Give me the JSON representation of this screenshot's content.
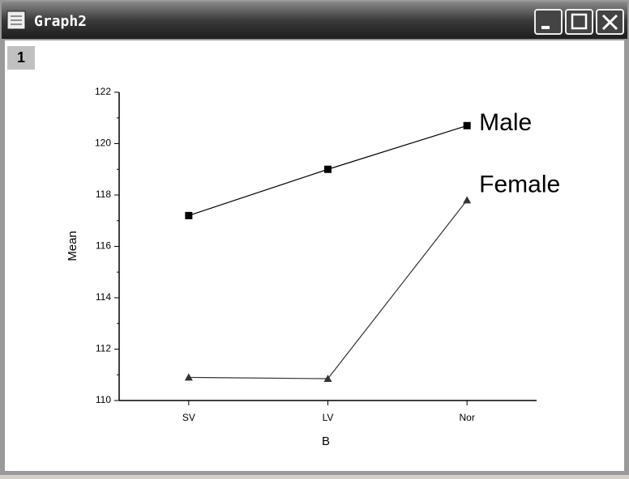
{
  "window": {
    "title": "Graph2",
    "layer": "1"
  },
  "chart_data": {
    "type": "line",
    "x_label": "B",
    "y_label": "Mean",
    "categories": [
      "SV",
      "LV",
      "Nor"
    ],
    "series": [
      {
        "name": "Male",
        "color": "#000000",
        "marker": "square",
        "values": [
          117.2,
          119.0,
          120.7
        ]
      },
      {
        "name": "Female",
        "color": "#333333",
        "marker": "triangle",
        "values": [
          110.9,
          110.85,
          117.8
        ]
      }
    ],
    "ylim": [
      110,
      122
    ],
    "yticks": [
      110,
      112,
      114,
      116,
      118,
      120,
      122
    ],
    "grid": false
  }
}
